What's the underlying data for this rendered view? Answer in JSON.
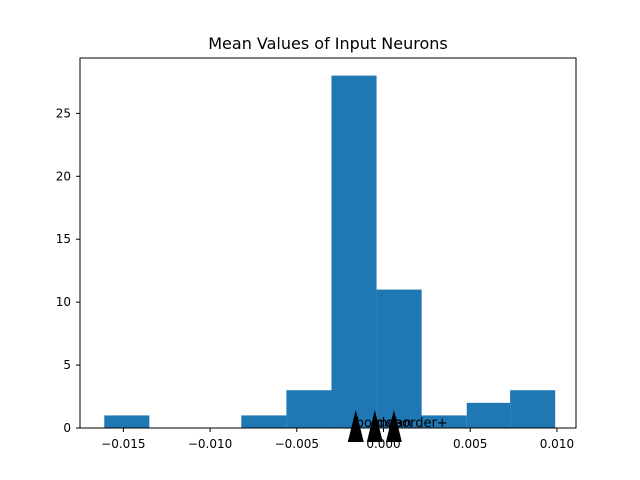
{
  "chart_data": {
    "type": "bar",
    "title": "Mean Values of Input Neurons",
    "xlabel": "",
    "ylabel": "",
    "xlim": [
      -0.0175,
      0.0111
    ],
    "ylim": [
      0,
      29.4
    ],
    "grid": false,
    "color": "#1f77b4",
    "bins": [
      {
        "x0": -0.0161,
        "x1": -0.0135,
        "count": 1
      },
      {
        "x0": -0.0135,
        "x1": -0.0108,
        "count": 0
      },
      {
        "x0": -0.0108,
        "x1": -0.0082,
        "count": 0
      },
      {
        "x0": -0.0082,
        "x1": -0.0056,
        "count": 1
      },
      {
        "x0": -0.0056,
        "x1": -0.003,
        "count": 3
      },
      {
        "x0": -0.003,
        "x1": -0.0004,
        "count": 28
      },
      {
        "x0": -0.0004,
        "x1": 0.0022,
        "count": 11
      },
      {
        "x0": 0.0022,
        "x1": 0.0048,
        "count": 1
      },
      {
        "x0": 0.0048,
        "x1": 0.0073,
        "count": 2
      },
      {
        "x0": 0.0073,
        "x1": 0.0099,
        "count": 3
      }
    ],
    "x_ticks": [
      {
        "value": -0.015,
        "label": "−0.015"
      },
      {
        "value": -0.01,
        "label": "−0.010"
      },
      {
        "value": -0.005,
        "label": "−0.005"
      },
      {
        "value": 0.0,
        "label": "0.000"
      },
      {
        "value": 0.005,
        "label": "0.005"
      },
      {
        "value": 0.01,
        "label": "0.010"
      }
    ],
    "y_ticks": [
      {
        "value": 0,
        "label": "0"
      },
      {
        "value": 5,
        "label": "5"
      },
      {
        "value": 10,
        "label": "10"
      },
      {
        "value": 15,
        "label": "15"
      },
      {
        "value": 20,
        "label": "20"
      },
      {
        "value": 25,
        "label": "25"
      }
    ],
    "markers": [
      {
        "label": "border-",
        "x": -0.0016
      },
      {
        "label": "mean",
        "x": -0.0005
      },
      {
        "label": "border+",
        "x": 0.0006
      }
    ]
  }
}
